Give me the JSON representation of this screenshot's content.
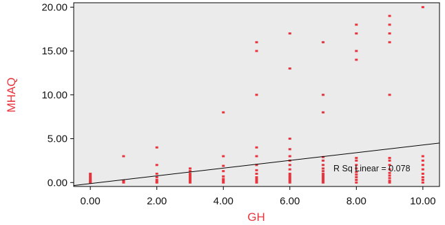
{
  "chart_data": {
    "type": "scatter",
    "xlabel": "GH",
    "ylabel": "MHAQ",
    "xlim": [
      -0.5,
      10.5
    ],
    "ylim": [
      -0.45,
      20.5
    ],
    "xticks": [
      "0.00",
      "2.00",
      "4.00",
      "6.00",
      "8.00",
      "10.00"
    ],
    "xtick_values": [
      0,
      2,
      4,
      6,
      8,
      10
    ],
    "yticks": [
      "0.00",
      "5.00",
      "10.00",
      "15.00",
      "20.00"
    ],
    "ytick_values": [
      0,
      5,
      10,
      15,
      20
    ],
    "grid": false,
    "plot_background": "#ebebeb",
    "point_color": "#e8343c",
    "label_color": "#e8343c",
    "fit_line": {
      "label": "R Sq Linear = 0.078",
      "intercept": -0.12,
      "slope": 0.44,
      "color": "#000000"
    },
    "points": [
      [
        0,
        0
      ],
      [
        0,
        0.1
      ],
      [
        0,
        0.2
      ],
      [
        0,
        0.4
      ],
      [
        0,
        0.6
      ],
      [
        0,
        0.8
      ],
      [
        0,
        1.0
      ],
      [
        1,
        0
      ],
      [
        1,
        0.1
      ],
      [
        1,
        0.2
      ],
      [
        1,
        3.0
      ],
      [
        2,
        0
      ],
      [
        2,
        0.1
      ],
      [
        2,
        0.3
      ],
      [
        2,
        0.6
      ],
      [
        2,
        1.0
      ],
      [
        2,
        2.0
      ],
      [
        2,
        4.0
      ],
      [
        3,
        0
      ],
      [
        3,
        0.2
      ],
      [
        3,
        0.4
      ],
      [
        3,
        0.6
      ],
      [
        3,
        0.8
      ],
      [
        3,
        1.0
      ],
      [
        3,
        1.3
      ],
      [
        3,
        1.6
      ],
      [
        4,
        0
      ],
      [
        4,
        0.2
      ],
      [
        4,
        0.4
      ],
      [
        4,
        0.7
      ],
      [
        4,
        1.3
      ],
      [
        4,
        1.9
      ],
      [
        4,
        3.0
      ],
      [
        4,
        8.0
      ],
      [
        5,
        0
      ],
      [
        5,
        0.2
      ],
      [
        5,
        0.4
      ],
      [
        5,
        0.6
      ],
      [
        5,
        1.0
      ],
      [
        5,
        1.4
      ],
      [
        5,
        2.0
      ],
      [
        5,
        3.0
      ],
      [
        5,
        4.0
      ],
      [
        5,
        10.0
      ],
      [
        5,
        15.0
      ],
      [
        5,
        16.0
      ],
      [
        6,
        0
      ],
      [
        6,
        0.2
      ],
      [
        6,
        0.4
      ],
      [
        6,
        0.6
      ],
      [
        6,
        0.8
      ],
      [
        6,
        1.0
      ],
      [
        6,
        1.5
      ],
      [
        6,
        2.0
      ],
      [
        6,
        2.5
      ],
      [
        6,
        3.0
      ],
      [
        6,
        3.8
      ],
      [
        6,
        5.0
      ],
      [
        6,
        13.0
      ],
      [
        6,
        17.0
      ],
      [
        7,
        0
      ],
      [
        7,
        0.2
      ],
      [
        7,
        0.4
      ],
      [
        7,
        0.6
      ],
      [
        7,
        0.8
      ],
      [
        7,
        1.0
      ],
      [
        7,
        1.3
      ],
      [
        7,
        1.6
      ],
      [
        7,
        2.0
      ],
      [
        7,
        2.5
      ],
      [
        7,
        2.9
      ],
      [
        7,
        8.0
      ],
      [
        7,
        10.0
      ],
      [
        7,
        16.0
      ],
      [
        8,
        0
      ],
      [
        8,
        0.3
      ],
      [
        8,
        0.6
      ],
      [
        8,
        0.9
      ],
      [
        8,
        1.2
      ],
      [
        8,
        1.6
      ],
      [
        8,
        2.0
      ],
      [
        8,
        2.5
      ],
      [
        8,
        2.8
      ],
      [
        8,
        14.0
      ],
      [
        8,
        15.0
      ],
      [
        8,
        17.0
      ],
      [
        8,
        18.0
      ],
      [
        9,
        0
      ],
      [
        9,
        0.2
      ],
      [
        9,
        0.5
      ],
      [
        9,
        0.8
      ],
      [
        9,
        1.1
      ],
      [
        9,
        1.5
      ],
      [
        9,
        2.0
      ],
      [
        9,
        2.5
      ],
      [
        9,
        2.8
      ],
      [
        9,
        10.0
      ],
      [
        9,
        16.0
      ],
      [
        9,
        17.0
      ],
      [
        9,
        18.0
      ],
      [
        9,
        19.0
      ],
      [
        10,
        0
      ],
      [
        10,
        0.3
      ],
      [
        10,
        0.6
      ],
      [
        10,
        1.0
      ],
      [
        10,
        1.5
      ],
      [
        10,
        2.0
      ],
      [
        10,
        2.5
      ],
      [
        10,
        3.0
      ],
      [
        10,
        20.0
      ]
    ]
  }
}
